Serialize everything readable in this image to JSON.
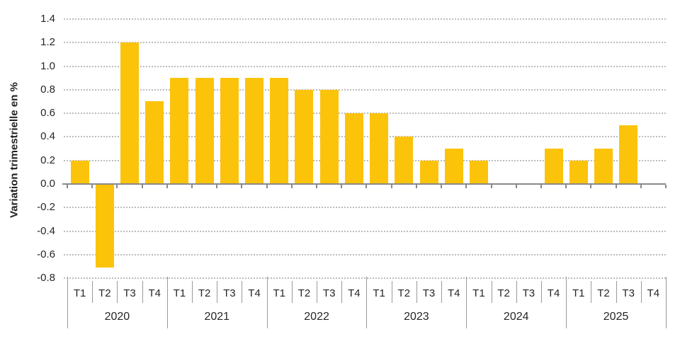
{
  "chart_data": {
    "type": "bar",
    "title": "",
    "xlabel": "",
    "ylabel": "Variation trimestrielle en %",
    "ylim": [
      -0.8,
      1.4
    ],
    "ytick_step": 0.2,
    "yticks": [
      1.4,
      1.2,
      1.0,
      0.8,
      0.6,
      0.4,
      0.2,
      0.0,
      -0.2,
      -0.4,
      -0.6,
      -0.8
    ],
    "ytick_labels": [
      "1.4",
      "1.2",
      "1.0",
      "0.8",
      "0.6",
      "0.4",
      "0.2",
      "0.0",
      "-0.2",
      "-0.4",
      "-0.6",
      "-0.8"
    ],
    "grid": "horizontal-dotted",
    "legend": null,
    "quarter_labels": [
      "T1",
      "T2",
      "T3",
      "T4"
    ],
    "years": [
      {
        "label": "2020",
        "values": [
          0.2,
          -0.7,
          1.2,
          0.7
        ]
      },
      {
        "label": "2021",
        "values": [
          0.9,
          0.9,
          0.9,
          0.9
        ]
      },
      {
        "label": "2022",
        "values": [
          0.9,
          0.8,
          0.8,
          0.6
        ]
      },
      {
        "label": "2023",
        "values": [
          0.6,
          0.4,
          0.2,
          0.3
        ]
      },
      {
        "label": "2024",
        "values": [
          0.2,
          0.0,
          0.0,
          0.3
        ]
      },
      {
        "label": "2025",
        "values": [
          0.2,
          0.3,
          0.5,
          null
        ]
      }
    ],
    "colors": {
      "bar": "#FCC30B",
      "gridline": "#BCBCBC",
      "axis": "#8A8A8A",
      "separator": "#9A9A9A",
      "text": "#262626"
    }
  }
}
